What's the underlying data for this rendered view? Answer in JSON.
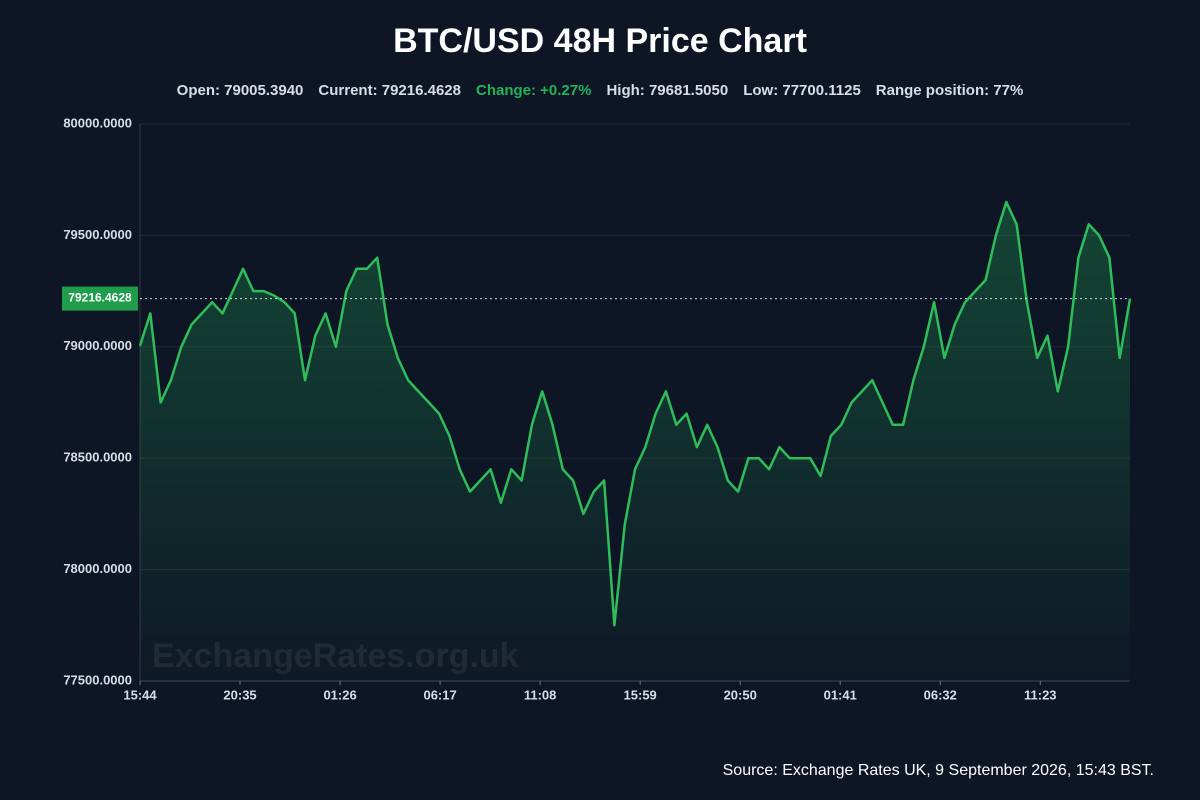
{
  "chart_data": {
    "type": "line",
    "title": "BTC/USD 48H Price Chart",
    "stats": [
      {
        "text": "Open: 79005.3940",
        "tone": "neutral"
      },
      {
        "text": "Current: 79216.4628",
        "tone": "neutral"
      },
      {
        "text": "Change: +0.27%",
        "tone": "positive"
      },
      {
        "text": "High: 79681.5050",
        "tone": "neutral"
      },
      {
        "text": "Low: 77700.1125",
        "tone": "neutral"
      },
      {
        "text": "Range position: 77%",
        "tone": "neutral"
      }
    ],
    "current_price": {
      "value": 79216.4628,
      "label": "79216.4628"
    },
    "watermark": "ExchangeRates.org.uk",
    "source": "Source: Exchange Rates UK, 9 September 2026, 15:43 BST.",
    "xlim": [
      0,
      48
    ],
    "xticks": [
      {
        "value": 0,
        "label": "15:44"
      },
      {
        "value": 4.85,
        "label": "20:35"
      },
      {
        "value": 9.7,
        "label": "01:26"
      },
      {
        "value": 14.55,
        "label": "06:17"
      },
      {
        "value": 19.4,
        "label": "11:08"
      },
      {
        "value": 24.25,
        "label": "15:59"
      },
      {
        "value": 29.1,
        "label": "20:50"
      },
      {
        "value": 33.95,
        "label": "01:41"
      },
      {
        "value": 38.8,
        "label": "06:32"
      },
      {
        "value": 43.65,
        "label": "11:23"
      }
    ],
    "ylim": [
      77500,
      80000
    ],
    "yticks": [
      {
        "value": 77500,
        "label": "77500.0000"
      },
      {
        "value": 78000,
        "label": "78000.0000"
      },
      {
        "value": 78500,
        "label": "78500.0000"
      },
      {
        "value": 79000,
        "label": "79000.0000"
      },
      {
        "value": 79500,
        "label": "79500.0000"
      },
      {
        "value": 80000,
        "label": "80000.0000"
      }
    ],
    "grid": true,
    "x": [
      0,
      0.5,
      1,
      1.5,
      2,
      2.5,
      3,
      3.5,
      4,
      4.5,
      5,
      5.5,
      6,
      6.5,
      7,
      7.5,
      8,
      8.5,
      9,
      9.5,
      10,
      10.5,
      11,
      11.5,
      12,
      12.5,
      13,
      13.5,
      14,
      14.5,
      15,
      15.5,
      16,
      16.5,
      17,
      17.5,
      18,
      18.5,
      19,
      19.5,
      20,
      20.5,
      21,
      21.5,
      22,
      22.5,
      23,
      23.5,
      24,
      24.5,
      25,
      25.5,
      26,
      26.5,
      27,
      27.5,
      28,
      28.5,
      29,
      29.5,
      30,
      30.5,
      31,
      31.5,
      32,
      32.5,
      33,
      33.5,
      34,
      34.5,
      35,
      35.5,
      36,
      36.5,
      37,
      37.5,
      38,
      38.5,
      39,
      39.5,
      40,
      40.5,
      41,
      41.5,
      42,
      42.5,
      43,
      43.5,
      44,
      44.5,
      45,
      45.5,
      46,
      46.5,
      47,
      47.5,
      48
    ],
    "series": [
      {
        "name": "BTC/USD",
        "color": "#2ebd59",
        "values": [
          79005,
          79150,
          78750,
          78850,
          79000,
          79100,
          79150,
          79200,
          79150,
          79250,
          79350,
          79250,
          79250,
          79230,
          79200,
          79150,
          78850,
          79050,
          79150,
          79000,
          79250,
          79350,
          79350,
          79400,
          79100,
          78950,
          78850,
          78800,
          78750,
          78700,
          78600,
          78450,
          78350,
          78400,
          78450,
          78300,
          78450,
          78400,
          78650,
          78800,
          78650,
          78450,
          78400,
          78250,
          78350,
          78400,
          77750,
          78200,
          78450,
          78550,
          78700,
          78800,
          78650,
          78700,
          78550,
          78650,
          78550,
          78400,
          78350,
          78500,
          78500,
          78450,
          78550,
          78500,
          78500,
          78500,
          78420,
          78600,
          78650,
          78750,
          78800,
          78850,
          78750,
          78650,
          78650,
          78850,
          79000,
          79200,
          78950,
          79100,
          79200,
          79250,
          79300,
          79500,
          79650,
          79550,
          79200,
          78950,
          79050,
          78800,
          79000,
          79400,
          79550,
          79500,
          79400,
          78950,
          79216.4628
        ]
      }
    ]
  }
}
